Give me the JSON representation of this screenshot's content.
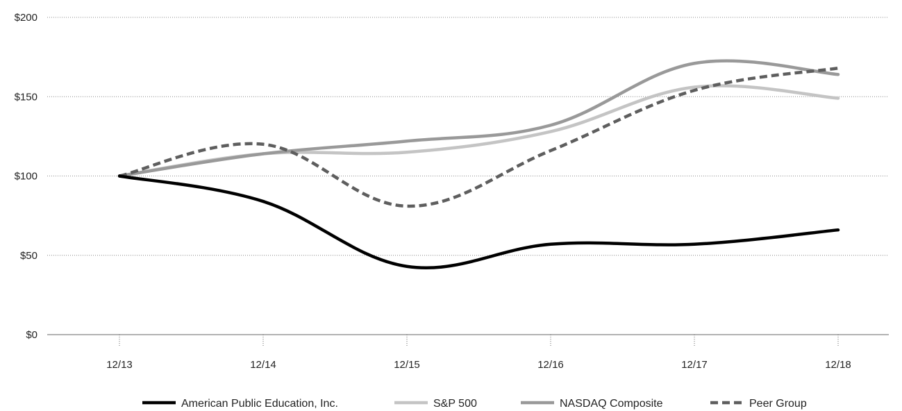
{
  "chart_data": {
    "type": "line",
    "title": "",
    "xlabel": "",
    "ylabel": "",
    "categories": [
      "12/13",
      "12/14",
      "12/15",
      "12/16",
      "12/17",
      "12/18"
    ],
    "ylim": [
      0,
      200
    ],
    "yticks": [
      0,
      50,
      100,
      150,
      200
    ],
    "ytick_labels": [
      "$0",
      "$50",
      "$100",
      "$150",
      "$200"
    ],
    "grid": "horizontal-dotted",
    "legend_position": "bottom",
    "series": [
      {
        "name": "American Public Education, Inc.",
        "values": [
          100,
          84,
          43,
          57,
          57,
          66
        ],
        "color": "#000000",
        "style": "solid"
      },
      {
        "name": "S&P 500",
        "values": [
          100,
          114,
          115,
          128,
          156,
          149
        ],
        "color": "#c4c4c4",
        "style": "solid"
      },
      {
        "name": "NASDAQ Composite",
        "values": [
          100,
          114,
          122,
          132,
          171,
          164
        ],
        "color": "#999999",
        "style": "solid"
      },
      {
        "name": "Peer Group",
        "values": [
          100,
          120,
          81,
          116,
          154,
          168
        ],
        "color": "#5e5e5e",
        "style": "dashed"
      }
    ]
  }
}
